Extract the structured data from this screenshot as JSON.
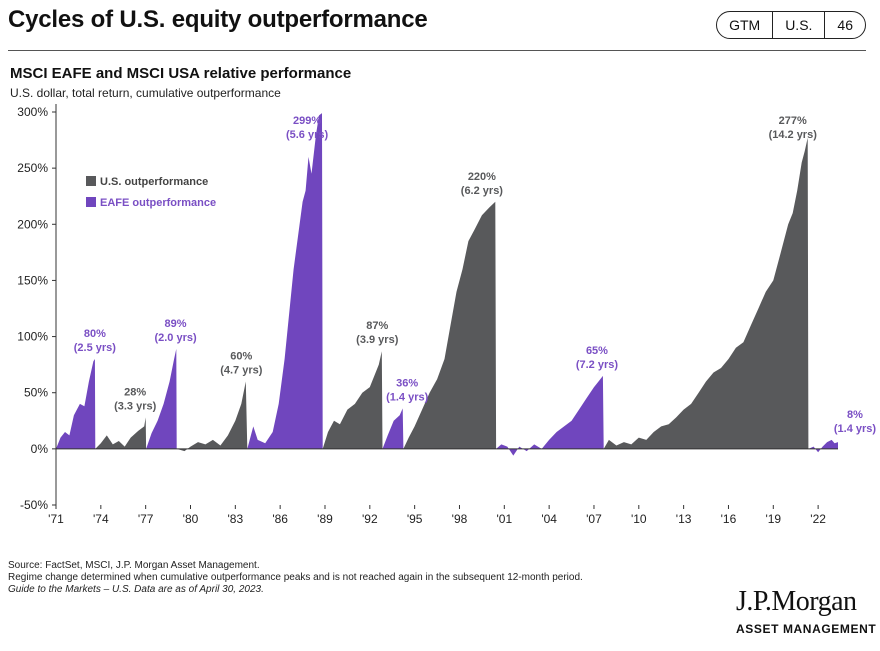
{
  "header": {
    "title": "Cycles of U.S. equity outperformance",
    "badge": [
      "GTM",
      "U.S.",
      "46"
    ]
  },
  "chart_title": "MSCI EAFE and MSCI USA relative performance",
  "chart_subtitle": "U.S. dollar, total return, cumulative outperformance",
  "colors": {
    "us": "#58595b",
    "eafe": "#7046be",
    "label_eafe": "#7a4fc4",
    "label_us": "#58595b",
    "axis": "#333333"
  },
  "chart_data": {
    "type": "area",
    "ylim": [
      -50,
      300
    ],
    "xlim": [
      1971.0,
      2023.33
    ],
    "y_ticks": [
      -50,
      0,
      50,
      100,
      150,
      200,
      250,
      300
    ],
    "y_tick_labels": [
      "-50%",
      "0%",
      "50%",
      "100%",
      "150%",
      "200%",
      "250%",
      "300%"
    ],
    "x_ticks": [
      1971,
      1974,
      1977,
      1980,
      1983,
      1986,
      1989,
      1992,
      1995,
      1998,
      2001,
      2004,
      2007,
      2010,
      2013,
      2016,
      2019,
      2022
    ],
    "x_tick_labels": [
      "'71",
      "'74",
      "'77",
      "'80",
      "'83",
      "'86",
      "'89",
      "'92",
      "'95",
      "'98",
      "'01",
      "'04",
      "'07",
      "'10",
      "'13",
      "'16",
      "'19",
      "'22"
    ],
    "legend": {
      "placement": "top-left",
      "items": [
        {
          "label": "U.S. outperformance",
          "series": "us"
        },
        {
          "label": "EAFE outperformance",
          "series": "eafe"
        }
      ]
    },
    "series": [
      {
        "name": "EAFE outperformance",
        "type": "eafe",
        "points": [
          [
            1971.0,
            0
          ],
          [
            1971.3,
            10
          ],
          [
            1971.6,
            15
          ],
          [
            1971.9,
            12
          ],
          [
            1972.2,
            30
          ],
          [
            1972.6,
            40
          ],
          [
            1972.9,
            38
          ],
          [
            1973.2,
            60
          ],
          [
            1973.5,
            78
          ],
          [
            1973.6,
            80
          ],
          [
            1973.63,
            0
          ]
        ]
      },
      {
        "name": "U.S. outperformance",
        "type": "us",
        "points": [
          [
            1973.63,
            0
          ],
          [
            1974.0,
            5
          ],
          [
            1974.4,
            12
          ],
          [
            1974.8,
            4
          ],
          [
            1975.2,
            7
          ],
          [
            1975.6,
            2
          ],
          [
            1976.0,
            10
          ],
          [
            1976.5,
            16
          ],
          [
            1976.9,
            20
          ],
          [
            1977.0,
            28
          ],
          [
            1977.03,
            0
          ]
        ]
      },
      {
        "name": "EAFE outperformance",
        "type": "eafe",
        "points": [
          [
            1977.03,
            0
          ],
          [
            1977.4,
            14
          ],
          [
            1977.8,
            25
          ],
          [
            1978.2,
            40
          ],
          [
            1978.6,
            60
          ],
          [
            1978.9,
            80
          ],
          [
            1979.05,
            89
          ],
          [
            1979.08,
            0
          ]
        ]
      },
      {
        "name": "U.S. outperformance",
        "type": "us",
        "points": [
          [
            1979.08,
            0
          ],
          [
            1979.6,
            -2
          ],
          [
            1980.0,
            2
          ],
          [
            1980.5,
            6
          ],
          [
            1981.0,
            4
          ],
          [
            1981.5,
            8
          ],
          [
            1982.0,
            3
          ],
          [
            1982.5,
            12
          ],
          [
            1983.0,
            25
          ],
          [
            1983.4,
            40
          ],
          [
            1983.7,
            60
          ],
          [
            1983.8,
            0
          ]
        ]
      },
      {
        "name": "EAFE outperformance",
        "type": "eafe",
        "points": [
          [
            1983.8,
            0
          ],
          [
            1984.2,
            20
          ],
          [
            1984.5,
            8
          ],
          [
            1985.0,
            5
          ],
          [
            1985.5,
            15
          ],
          [
            1985.9,
            40
          ],
          [
            1986.3,
            80
          ],
          [
            1986.6,
            120
          ],
          [
            1986.9,
            160
          ],
          [
            1987.2,
            190
          ],
          [
            1987.5,
            220
          ],
          [
            1987.7,
            230
          ],
          [
            1987.9,
            260
          ],
          [
            1988.1,
            245
          ],
          [
            1988.4,
            280
          ],
          [
            1988.6,
            297
          ],
          [
            1988.8,
            299
          ],
          [
            1988.85,
            0
          ]
        ]
      },
      {
        "name": "U.S. outperformance",
        "type": "us",
        "points": [
          [
            1988.85,
            0
          ],
          [
            1989.2,
            15
          ],
          [
            1989.6,
            25
          ],
          [
            1990.0,
            22
          ],
          [
            1990.5,
            35
          ],
          [
            1991.0,
            40
          ],
          [
            1991.5,
            50
          ],
          [
            1992.0,
            55
          ],
          [
            1992.3,
            65
          ],
          [
            1992.6,
            75
          ],
          [
            1992.8,
            87
          ],
          [
            1992.85,
            0
          ]
        ]
      },
      {
        "name": "EAFE outperformance",
        "type": "eafe",
        "points": [
          [
            1992.85,
            0
          ],
          [
            1993.2,
            12
          ],
          [
            1993.6,
            25
          ],
          [
            1994.0,
            30
          ],
          [
            1994.2,
            36
          ],
          [
            1994.25,
            0
          ]
        ]
      },
      {
        "name": "U.S. outperformance",
        "type": "us",
        "points": [
          [
            1994.25,
            0
          ],
          [
            1994.6,
            10
          ],
          [
            1995.0,
            20
          ],
          [
            1995.5,
            35
          ],
          [
            1996.0,
            50
          ],
          [
            1996.5,
            62
          ],
          [
            1997.0,
            80
          ],
          [
            1997.4,
            110
          ],
          [
            1997.8,
            140
          ],
          [
            1998.2,
            160
          ],
          [
            1998.6,
            185
          ],
          [
            1999.0,
            195
          ],
          [
            1999.5,
            208
          ],
          [
            2000.0,
            215
          ],
          [
            2000.4,
            220
          ],
          [
            2000.45,
            0
          ]
        ]
      },
      {
        "name": "EAFE outperformance",
        "type": "eafe",
        "points": [
          [
            2000.45,
            0
          ],
          [
            2000.8,
            4
          ],
          [
            2001.2,
            2
          ],
          [
            2001.6,
            -6
          ],
          [
            2002.0,
            2
          ],
          [
            2002.5,
            -2
          ],
          [
            2003.0,
            4
          ],
          [
            2003.5,
            0
          ],
          [
            2004.0,
            8
          ],
          [
            2004.5,
            15
          ],
          [
            2005.0,
            20
          ],
          [
            2005.5,
            25
          ],
          [
            2006.0,
            35
          ],
          [
            2006.5,
            45
          ],
          [
            2007.0,
            55
          ],
          [
            2007.3,
            60
          ],
          [
            2007.6,
            65
          ],
          [
            2007.65,
            0
          ]
        ]
      },
      {
        "name": "U.S. outperformance",
        "type": "us",
        "points": [
          [
            2007.65,
            0
          ],
          [
            2008.0,
            8
          ],
          [
            2008.5,
            3
          ],
          [
            2009.0,
            6
          ],
          [
            2009.5,
            4
          ],
          [
            2010.0,
            10
          ],
          [
            2010.5,
            8
          ],
          [
            2011.0,
            15
          ],
          [
            2011.5,
            20
          ],
          [
            2012.0,
            22
          ],
          [
            2012.5,
            28
          ],
          [
            2013.0,
            35
          ],
          [
            2013.5,
            40
          ],
          [
            2014.0,
            50
          ],
          [
            2014.5,
            60
          ],
          [
            2015.0,
            68
          ],
          [
            2015.5,
            72
          ],
          [
            2016.0,
            80
          ],
          [
            2016.5,
            90
          ],
          [
            2017.0,
            95
          ],
          [
            2017.5,
            110
          ],
          [
            2018.0,
            125
          ],
          [
            2018.5,
            140
          ],
          [
            2019.0,
            150
          ],
          [
            2019.5,
            175
          ],
          [
            2020.0,
            200
          ],
          [
            2020.3,
            210
          ],
          [
            2020.6,
            230
          ],
          [
            2020.9,
            255
          ],
          [
            2021.1,
            265
          ],
          [
            2021.3,
            277
          ],
          [
            2021.35,
            0
          ]
        ]
      },
      {
        "name": "EAFE outperformance",
        "type": "eafe",
        "points": [
          [
            2021.35,
            0
          ],
          [
            2021.7,
            2
          ],
          [
            2022.0,
            -3
          ],
          [
            2022.3,
            2
          ],
          [
            2022.6,
            6
          ],
          [
            2022.9,
            8
          ],
          [
            2023.1,
            5
          ],
          [
            2023.33,
            6
          ],
          [
            2023.33,
            0
          ]
        ]
      }
    ],
    "annotations": [
      {
        "value": "80%",
        "period": "(2.5 yrs)",
        "series": "eafe",
        "x": 1973.6,
        "y": 80
      },
      {
        "value": "28%",
        "period": "(3.3 yrs)",
        "series": "us",
        "x": 1976.3,
        "y": 28
      },
      {
        "value": "89%",
        "period": "(2.0 yrs)",
        "series": "eafe",
        "x": 1979.0,
        "y": 89
      },
      {
        "value": "60%",
        "period": "(4.7 yrs)",
        "series": "us",
        "x": 1983.4,
        "y": 60
      },
      {
        "value": "299%",
        "period": "(5.6 yrs)",
        "series": "eafe",
        "x": 1987.8,
        "y": 299
      },
      {
        "value": "87%",
        "period": "(3.9 yrs)",
        "series": "us",
        "x": 1992.5,
        "y": 87
      },
      {
        "value": "36%",
        "period": "(1.4 yrs)",
        "series": "eafe",
        "x": 1994.5,
        "y": 36
      },
      {
        "value": "220%",
        "period": "(6.2 yrs)",
        "series": "us",
        "x": 1999.5,
        "y": 220
      },
      {
        "value": "65%",
        "period": "(7.2 yrs)",
        "series": "eafe",
        "x": 2007.2,
        "y": 65
      },
      {
        "value": "277%",
        "period": "(14.2 yrs)",
        "series": "us",
        "x": 2020.3,
        "y": 277
      },
      {
        "value": "8%",
        "period": "(1.4 yrs)",
        "series": "eafe",
        "x": 2025.5,
        "y": 8
      }
    ]
  },
  "footnotes": [
    "Source: FactSet, MSCI, J.P. Morgan Asset Management.",
    "Regime change determined when cumulative outperformance peaks and is not reached again in the subsequent 12-month period.",
    "Guide to the Markets – U.S. Data are as of April 30, 2023."
  ],
  "logo": {
    "main": "J.P.Morgan",
    "sub": "ASSET MANAGEMENT"
  }
}
